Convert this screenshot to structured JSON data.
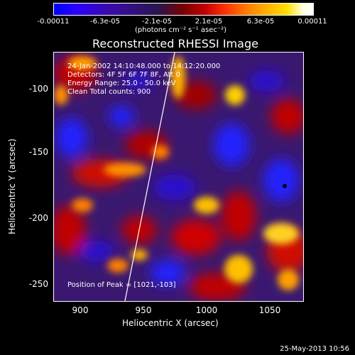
{
  "colorbar": {
    "ticks": [
      "-0.00011",
      "-6.3e-05",
      "-2.1e-05",
      "2.1e-05",
      "6.3e-05",
      "0.00011"
    ],
    "units": "(photons cm⁻² s⁻¹ asec⁻²)"
  },
  "title": "Reconstructed RHESSI Image",
  "info": {
    "line1": "24-Jan-2002 14:10:48.000 to 14:12:20.000",
    "line2": "Detectors: 4F 5F 6F 7F 8F, Att 0",
    "line3": "Energy Range: 25.0 - 50.0 keV",
    "line4": "Clean    Total counts: 900"
  },
  "peak_text": "Position of Peak = [1021,-103]",
  "axes": {
    "xlabel": "Heliocentric X (arcsec)",
    "ylabel": "Heliocentric Y (arcsec)",
    "xticks": [
      "900",
      "950",
      "1000",
      "1050"
    ],
    "yticks": [
      "-100",
      "-150",
      "-200",
      "-250"
    ]
  },
  "footer_date": "25-May-2013 10:56",
  "colors": {
    "low": "#0000ff",
    "mid": "#2a1550",
    "high": "#ffffff"
  }
}
